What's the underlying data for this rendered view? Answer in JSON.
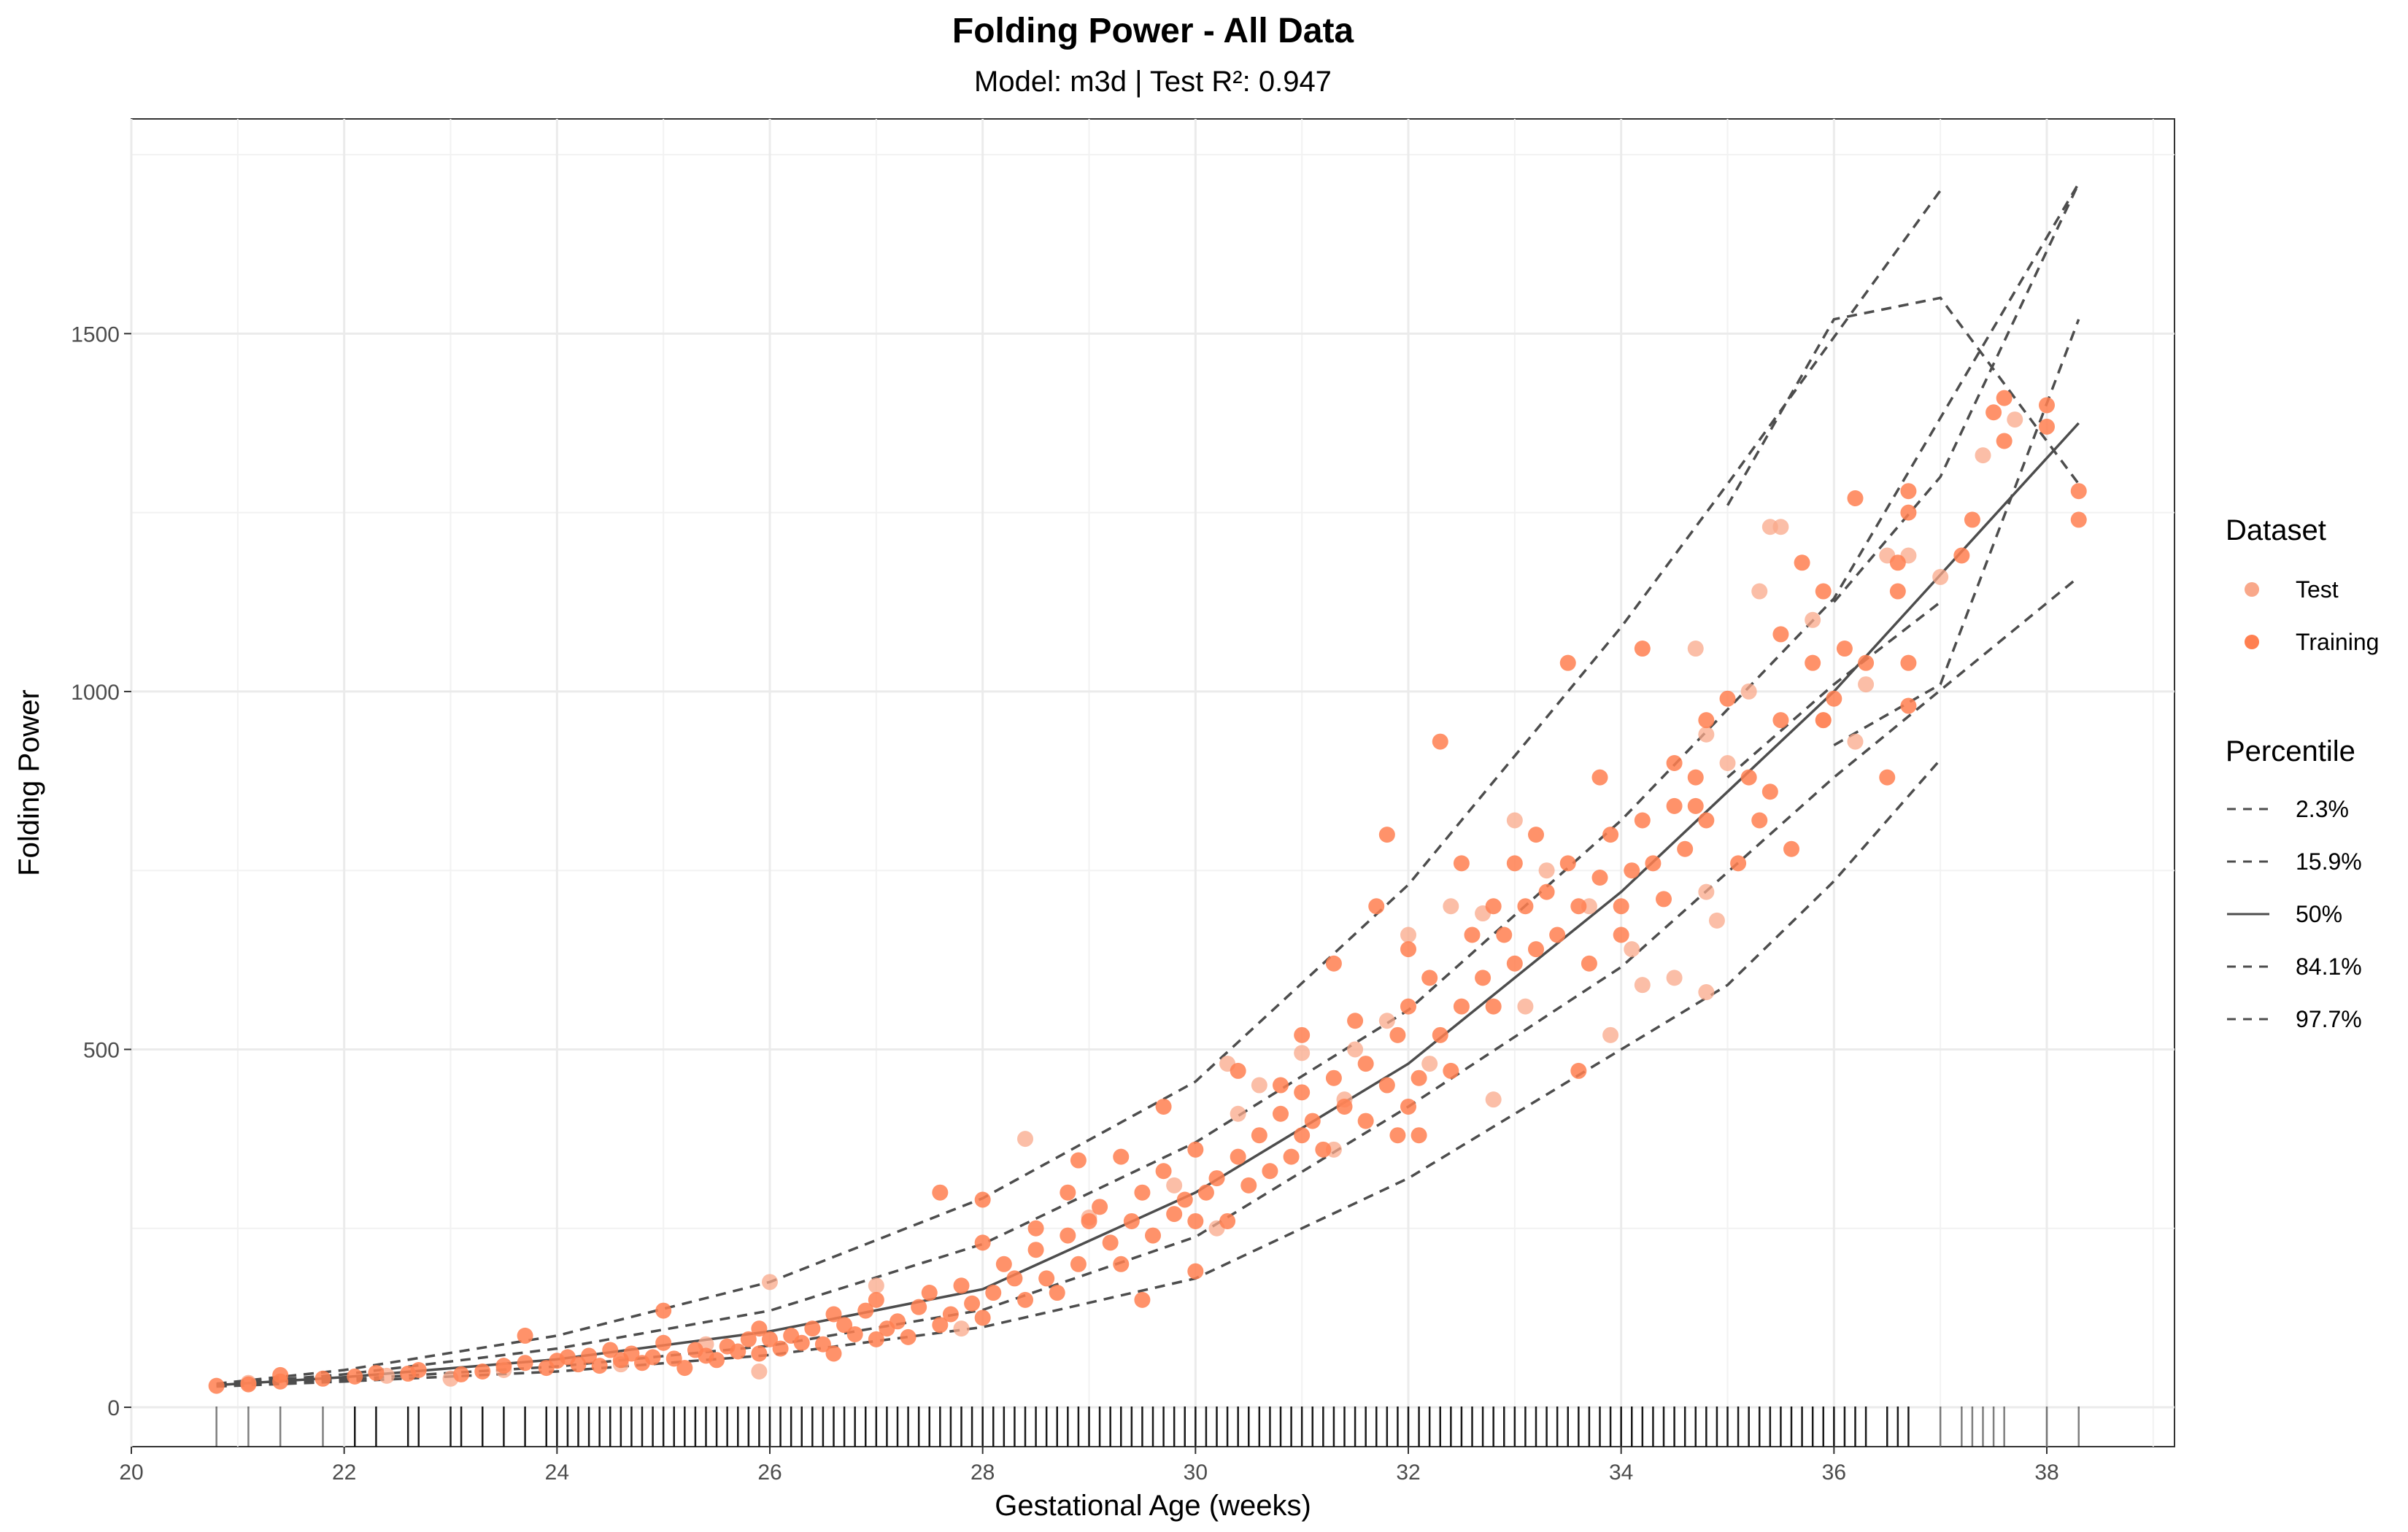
{
  "chart_data": {
    "type": "scatter",
    "title": "Folding Power - All Data",
    "subtitle": "Model: m3d | Test R²: 0.947",
    "xlabel": "Gestational Age (weeks)",
    "ylabel": "Folding Power",
    "xlim": [
      20,
      39.2
    ],
    "ylim": [
      -55,
      1800
    ],
    "x_ticks": [
      20,
      22,
      24,
      26,
      28,
      30,
      32,
      34,
      36,
      38
    ],
    "y_ticks": [
      0,
      500,
      1000,
      1500
    ],
    "grid": true,
    "legend_position": "right",
    "colors": {
      "test": "#f9a88a",
      "training": "#ff7f50",
      "lines": "#4d4d4d",
      "rug": "#000000"
    },
    "legends": {
      "dataset": {
        "title": "Dataset",
        "entries": [
          "Test",
          "Training"
        ]
      },
      "percentile": {
        "title": "Percentile",
        "entries": [
          "2.3%",
          "15.9%",
          "50%",
          "84.1%",
          "97.7%"
        ]
      }
    },
    "percentile_curves": [
      {
        "name": "97.7%",
        "style": "dashed",
        "x": [
          20.8,
          22,
          24,
          26,
          28,
          30,
          32,
          34,
          35,
          36,
          37
        ],
        "y": [
          33,
          52,
          100,
          175,
          292,
          455,
          730,
          1090,
          1290,
          1495,
          1700
        ]
      },
      {
        "name": "84.1%",
        "style": "dashed",
        "x": [
          20.8,
          22,
          24,
          26,
          28,
          30,
          32,
          34,
          36,
          38.3
        ],
        "y": [
          32,
          46,
          82,
          135,
          228,
          370,
          555,
          820,
          1130,
          1710
        ]
      },
      {
        "name": "50%",
        "style": "solid",
        "x": [
          20.8,
          22,
          24,
          26,
          28,
          30,
          32,
          34,
          36,
          38.3
        ],
        "y": [
          31,
          42,
          67,
          106,
          165,
          300,
          480,
          720,
          1000,
          1375
        ]
      },
      {
        "name": "15.9%",
        "style": "dashed",
        "x": [
          20.8,
          22,
          24,
          26,
          28,
          30,
          32,
          34,
          36,
          38.3
        ],
        "y": [
          30,
          39,
          57,
          86,
          136,
          238,
          420,
          615,
          880,
          1160
        ]
      },
      {
        "name": "2.3%",
        "style": "dashed",
        "x": [
          20.8,
          22,
          24,
          26,
          28,
          30,
          32,
          34,
          35,
          36,
          37
        ],
        "y": [
          29,
          36,
          50,
          73,
          112,
          180,
          320,
          500,
          590,
          735,
          905
        ]
      },
      {
        "name": "97.7%",
        "style": "dashed",
        "x": [
          36,
          37,
          38.3
        ],
        "y": [
          1125,
          1300,
          1710
        ]
      },
      {
        "name": "2.3%",
        "style": "dashed",
        "x": [
          36,
          37,
          38.3
        ],
        "y": [
          925,
          1010,
          1520
        ]
      },
      {
        "name": "84.1%",
        "style": "dashed",
        "x": [
          35,
          36,
          37,
          38.3
        ],
        "y": [
          1260,
          1520,
          1550,
          1290
        ]
      },
      {
        "name": "15.9%",
        "style": "dashed",
        "x": [
          35,
          36,
          37
        ],
        "y": [
          880,
          1010,
          1125
        ]
      }
    ],
    "training_points": [
      [
        20.8,
        30
      ],
      [
        21.1,
        32
      ],
      [
        21.4,
        36
      ],
      [
        21.4,
        45
      ],
      [
        21.8,
        40
      ],
      [
        22.1,
        43
      ],
      [
        22.3,
        48
      ],
      [
        22.6,
        47
      ],
      [
        22.7,
        52
      ],
      [
        23.1,
        46
      ],
      [
        23.3,
        50
      ],
      [
        23.5,
        58
      ],
      [
        23.7,
        62
      ],
      [
        23.7,
        100
      ],
      [
        23.9,
        55
      ],
      [
        24.0,
        65
      ],
      [
        24.1,
        70
      ],
      [
        24.2,
        60
      ],
      [
        24.3,
        72
      ],
      [
        24.4,
        58
      ],
      [
        24.5,
        80
      ],
      [
        24.6,
        66
      ],
      [
        24.7,
        75
      ],
      [
        24.8,
        62
      ],
      [
        24.9,
        70
      ],
      [
        25.0,
        135
      ],
      [
        25.0,
        90
      ],
      [
        25.1,
        68
      ],
      [
        25.2,
        55
      ],
      [
        25.3,
        80
      ],
      [
        25.4,
        72
      ],
      [
        25.5,
        66
      ],
      [
        25.6,
        85
      ],
      [
        25.7,
        78
      ],
      [
        25.8,
        95
      ],
      [
        25.9,
        110
      ],
      [
        25.9,
        75
      ],
      [
        26.0,
        95
      ],
      [
        26.1,
        82
      ],
      [
        26.2,
        100
      ],
      [
        26.3,
        90
      ],
      [
        26.4,
        110
      ],
      [
        26.5,
        88
      ],
      [
        26.6,
        130
      ],
      [
        26.6,
        75
      ],
      [
        26.7,
        115
      ],
      [
        26.8,
        102
      ],
      [
        26.9,
        135
      ],
      [
        27.0,
        95
      ],
      [
        27.0,
        150
      ],
      [
        27.1,
        110
      ],
      [
        27.2,
        120
      ],
      [
        27.3,
        98
      ],
      [
        27.4,
        140
      ],
      [
        27.5,
        160
      ],
      [
        27.6,
        115
      ],
      [
        27.6,
        300
      ],
      [
        27.7,
        130
      ],
      [
        27.8,
        170
      ],
      [
        27.9,
        145
      ],
      [
        28.0,
        290
      ],
      [
        28.0,
        230
      ],
      [
        28.0,
        125
      ],
      [
        28.1,
        160
      ],
      [
        28.2,
        200
      ],
      [
        28.3,
        180
      ],
      [
        28.4,
        150
      ],
      [
        28.5,
        220
      ],
      [
        28.5,
        250
      ],
      [
        28.6,
        180
      ],
      [
        28.7,
        160
      ],
      [
        28.8,
        240
      ],
      [
        28.8,
        300
      ],
      [
        28.9,
        200
      ],
      [
        28.9,
        345
      ],
      [
        29.0,
        260
      ],
      [
        29.1,
        280
      ],
      [
        29.2,
        230
      ],
      [
        29.3,
        350
      ],
      [
        29.3,
        200
      ],
      [
        29.4,
        260
      ],
      [
        29.5,
        300
      ],
      [
        29.5,
        150
      ],
      [
        29.6,
        240
      ],
      [
        29.7,
        330
      ],
      [
        29.7,
        420
      ],
      [
        29.8,
        270
      ],
      [
        29.9,
        290
      ],
      [
        30.0,
        190
      ],
      [
        30.0,
        260
      ],
      [
        30.0,
        360
      ],
      [
        30.1,
        300
      ],
      [
        30.2,
        320
      ],
      [
        30.3,
        260
      ],
      [
        30.4,
        350
      ],
      [
        30.4,
        470
      ],
      [
        30.5,
        310
      ],
      [
        30.6,
        380
      ],
      [
        30.7,
        330
      ],
      [
        30.8,
        410
      ],
      [
        30.8,
        450
      ],
      [
        30.9,
        350
      ],
      [
        31.0,
        380
      ],
      [
        31.0,
        440
      ],
      [
        31.0,
        520
      ],
      [
        31.1,
        400
      ],
      [
        31.2,
        360
      ],
      [
        31.3,
        460
      ],
      [
        31.3,
        620
      ],
      [
        31.4,
        420
      ],
      [
        31.5,
        540
      ],
      [
        31.6,
        400
      ],
      [
        31.6,
        480
      ],
      [
        31.7,
        700
      ],
      [
        31.8,
        800
      ],
      [
        31.8,
        450
      ],
      [
        31.9,
        380
      ],
      [
        31.9,
        520
      ],
      [
        32.0,
        420
      ],
      [
        32.0,
        560
      ],
      [
        32.0,
        640
      ],
      [
        32.1,
        460
      ],
      [
        32.1,
        380
      ],
      [
        32.2,
        600
      ],
      [
        32.3,
        520
      ],
      [
        32.3,
        930
      ],
      [
        32.4,
        470
      ],
      [
        32.5,
        560
      ],
      [
        32.5,
        760
      ],
      [
        32.6,
        660
      ],
      [
        32.7,
        600
      ],
      [
        32.8,
        560
      ],
      [
        32.8,
        700
      ],
      [
        32.9,
        660
      ],
      [
        33.0,
        620
      ],
      [
        33.0,
        760
      ],
      [
        33.1,
        700
      ],
      [
        33.2,
        640
      ],
      [
        33.2,
        800
      ],
      [
        33.3,
        720
      ],
      [
        33.4,
        660
      ],
      [
        33.5,
        1040
      ],
      [
        33.5,
        760
      ],
      [
        33.6,
        700
      ],
      [
        33.6,
        470
      ],
      [
        33.7,
        620
      ],
      [
        33.8,
        880
      ],
      [
        33.8,
        740
      ],
      [
        33.9,
        800
      ],
      [
        34.0,
        700
      ],
      [
        34.0,
        660
      ],
      [
        34.1,
        750
      ],
      [
        34.2,
        820
      ],
      [
        34.2,
        1060
      ],
      [
        34.3,
        760
      ],
      [
        34.4,
        710
      ],
      [
        34.5,
        900
      ],
      [
        34.5,
        840
      ],
      [
        34.6,
        780
      ],
      [
        34.7,
        840
      ],
      [
        34.7,
        880
      ],
      [
        34.8,
        960
      ],
      [
        34.8,
        820
      ],
      [
        35.0,
        990
      ],
      [
        35.1,
        760
      ],
      [
        35.2,
        880
      ],
      [
        35.3,
        820
      ],
      [
        35.4,
        860
      ],
      [
        35.5,
        960
      ],
      [
        35.5,
        1080
      ],
      [
        35.6,
        780
      ],
      [
        35.7,
        1180
      ],
      [
        35.8,
        1040
      ],
      [
        35.9,
        1140
      ],
      [
        35.9,
        960
      ],
      [
        36.0,
        990
      ],
      [
        36.1,
        1060
      ],
      [
        36.2,
        1270
      ],
      [
        36.3,
        1040
      ],
      [
        36.5,
        880
      ],
      [
        36.6,
        1140
      ],
      [
        36.6,
        1180
      ],
      [
        36.7,
        1250
      ],
      [
        36.7,
        1280
      ],
      [
        36.7,
        1040
      ],
      [
        36.7,
        980
      ],
      [
        37.2,
        1190
      ],
      [
        37.3,
        1240
      ],
      [
        37.5,
        1390
      ],
      [
        37.6,
        1350
      ],
      [
        37.6,
        1410
      ],
      [
        38.0,
        1400
      ],
      [
        38.0,
        1370
      ],
      [
        38.3,
        1280
      ],
      [
        38.3,
        1240
      ]
    ],
    "test_points": [
      [
        21.1,
        34
      ],
      [
        22.4,
        44
      ],
      [
        23.0,
        40
      ],
      [
        23.5,
        52
      ],
      [
        24.6,
        60
      ],
      [
        25.4,
        88
      ],
      [
        25.9,
        50
      ],
      [
        26.0,
        175
      ],
      [
        27.0,
        170
      ],
      [
        27.8,
        110
      ],
      [
        28.4,
        375
      ],
      [
        29.0,
        265
      ],
      [
        29.8,
        310
      ],
      [
        30.2,
        250
      ],
      [
        30.3,
        480
      ],
      [
        30.4,
        410
      ],
      [
        30.6,
        450
      ],
      [
        31.0,
        495
      ],
      [
        31.3,
        360
      ],
      [
        31.4,
        430
      ],
      [
        31.5,
        500
      ],
      [
        31.8,
        540
      ],
      [
        32.0,
        660
      ],
      [
        32.2,
        480
      ],
      [
        32.4,
        700
      ],
      [
        32.7,
        690
      ],
      [
        32.8,
        430
      ],
      [
        33.0,
        820
      ],
      [
        33.1,
        560
      ],
      [
        33.3,
        750
      ],
      [
        33.7,
        700
      ],
      [
        33.9,
        520
      ],
      [
        34.1,
        640
      ],
      [
        34.2,
        590
      ],
      [
        34.5,
        600
      ],
      [
        34.7,
        1060
      ],
      [
        34.8,
        940
      ],
      [
        34.8,
        720
      ],
      [
        34.8,
        580
      ],
      [
        34.9,
        680
      ],
      [
        35.0,
        900
      ],
      [
        35.2,
        1000
      ],
      [
        35.3,
        1140
      ],
      [
        35.4,
        1230
      ],
      [
        35.5,
        1230
      ],
      [
        35.8,
        1100
      ],
      [
        35.9,
        960
      ],
      [
        36.2,
        930
      ],
      [
        36.3,
        1010
      ],
      [
        36.5,
        1190
      ],
      [
        36.7,
        1190
      ],
      [
        37.0,
        1160
      ],
      [
        37.4,
        1330
      ],
      [
        37.7,
        1380
      ]
    ],
    "rug_x": [
      20.8,
      21.1,
      21.4,
      21.8,
      22.1,
      22.3,
      22.6,
      22.7,
      23.0,
      23.1,
      23.3,
      23.5,
      23.7,
      23.9,
      24.0,
      24.1,
      24.2,
      24.3,
      24.4,
      24.5,
      24.6,
      24.7,
      24.8,
      24.9,
      25.0,
      25.1,
      25.2,
      25.3,
      25.4,
      25.5,
      25.6,
      25.7,
      25.8,
      25.9,
      26.0,
      26.1,
      26.2,
      26.3,
      26.4,
      26.5,
      26.6,
      26.7,
      26.8,
      26.9,
      27.0,
      27.1,
      27.2,
      27.3,
      27.4,
      27.5,
      27.6,
      27.7,
      27.8,
      27.9,
      28.0,
      28.1,
      28.2,
      28.3,
      28.4,
      28.5,
      28.6,
      28.7,
      28.8,
      28.9,
      29.0,
      29.1,
      29.2,
      29.3,
      29.4,
      29.5,
      29.6,
      29.7,
      29.8,
      29.9,
      30.0,
      30.1,
      30.2,
      30.3,
      30.4,
      30.5,
      30.6,
      30.7,
      30.8,
      30.9,
      31.0,
      31.1,
      31.2,
      31.3,
      31.4,
      31.5,
      31.6,
      31.7,
      31.8,
      31.9,
      32.0,
      32.1,
      32.2,
      32.3,
      32.4,
      32.5,
      32.6,
      32.7,
      32.8,
      32.9,
      33.0,
      33.1,
      33.2,
      33.3,
      33.4,
      33.5,
      33.6,
      33.7,
      33.8,
      33.9,
      34.0,
      34.1,
      34.2,
      34.3,
      34.4,
      34.5,
      34.6,
      34.7,
      34.8,
      34.9,
      35.0,
      35.1,
      35.2,
      35.3,
      35.4,
      35.5,
      35.6,
      35.7,
      35.8,
      35.9,
      36.0,
      36.1,
      36.2,
      36.3,
      36.5,
      36.6,
      36.7,
      37.0,
      37.2,
      37.3,
      37.4,
      37.5,
      37.6,
      38.0,
      38.3
    ]
  }
}
